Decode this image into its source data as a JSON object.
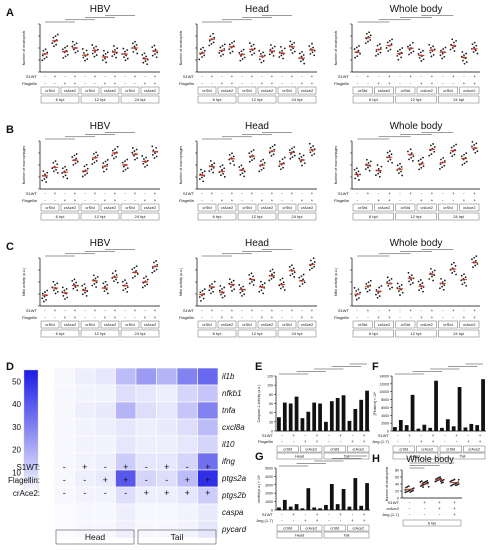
{
  "panels": {
    "A": "A",
    "B": "B",
    "C": "C",
    "D": "D",
    "E": "E",
    "F": "F",
    "G": "G",
    "H": "H"
  },
  "column_titles": [
    "HBV",
    "Head",
    "Whole body"
  ],
  "row_ylabels": {
    "A": "Number of neutrophils",
    "B": "Number of macrophages",
    "C": "Nfkb activity (a.u.)"
  },
  "abc_rows": {
    "row1_label": "S1WT",
    "A_row2_label": "Flagellin",
    "B_row2_label": "Flagellin",
    "C_row2_label": "Flagellin",
    "group_labels": [
      "crStd",
      "crAce2"
    ],
    "time_labels": [
      "6 hpi",
      "12 hpi",
      "24 hpi"
    ],
    "signs": [
      "-",
      "+",
      "-",
      "+"
    ]
  },
  "colors": {
    "dots": "#1a1a1a",
    "highlight": "#c0392b",
    "heat_low": "#ffffff",
    "heat_high": "#1a1ae6",
    "bar": "#111111"
  },
  "chart_data": [
    {
      "panel": "D",
      "type": "heatmap",
      "rows": [
        "il1b",
        "nfkb1",
        "tnfa",
        "cxcl8a",
        "il10",
        "ifng",
        "ptgs2a",
        "ptgs2b",
        "caspa",
        "pycard"
      ],
      "colorbar": {
        "ticks": [
          10,
          20,
          30,
          40,
          50
        ],
        "range": [
          0,
          55
        ]
      },
      "col_annotations": {
        "S1WT": [
          "-",
          "+",
          "-",
          "+",
          "-",
          "+",
          "-",
          "+"
        ],
        "Flagellin": [
          "-",
          "-",
          "+",
          "+",
          "-",
          "-",
          "+",
          "+"
        ],
        "crAce2": [
          "-",
          "-",
          "-",
          "-",
          "+",
          "+",
          "+",
          "+"
        ]
      },
      "groups": [
        "Head",
        "Tail"
      ],
      "values": [
        [
          2,
          4,
          6,
          16,
          24,
          18,
          30,
          36
        ],
        [
          2,
          3,
          3,
          8,
          6,
          4,
          10,
          14
        ],
        [
          2,
          4,
          5,
          18,
          8,
          6,
          14,
          30
        ],
        [
          2,
          3,
          4,
          6,
          4,
          5,
          8,
          16
        ],
        [
          2,
          3,
          3,
          6,
          4,
          4,
          6,
          10
        ],
        [
          2,
          3,
          4,
          12,
          6,
          6,
          10,
          34
        ],
        [
          2,
          4,
          5,
          40,
          10,
          8,
          16,
          50
        ],
        [
          2,
          3,
          3,
          8,
          4,
          4,
          6,
          12
        ],
        [
          1,
          2,
          2,
          4,
          2,
          2,
          3,
          5
        ],
        [
          1,
          2,
          2,
          4,
          2,
          2,
          3,
          6
        ]
      ]
    },
    {
      "panel": "E",
      "type": "bar",
      "ylabel": "Caspase-1 activity (a.u.)",
      "ylim": [
        0,
        120
      ],
      "yticks": [
        0,
        20,
        40,
        60,
        80,
        100,
        120
      ],
      "rowlabels": [
        "S1WT",
        "Flagellin"
      ],
      "row_signs": [
        [
          "-",
          "+",
          "-",
          "+",
          "-",
          "+",
          "-",
          "+"
        ],
        [
          "-",
          "-",
          "+",
          "+",
          "-",
          "-",
          "+",
          "+"
        ]
      ],
      "subgroups": [
        "crStd",
        "crAce2",
        "crStd",
        "crAce2"
      ],
      "groups": [
        "Head",
        "Tail"
      ],
      "values": [
        30,
        62,
        60,
        75,
        28,
        42,
        62,
        60,
        20,
        65,
        72,
        78,
        22,
        48,
        68,
        88
      ]
    },
    {
      "panel": "F",
      "type": "bar",
      "ylabel": "[Ptinlmin] × 10⁶",
      "ylim": [
        0,
        14000
      ],
      "yticks": [
        0,
        2000,
        4000,
        6000,
        8000,
        10000,
        12000,
        14000
      ],
      "rowlabels": [
        "S1WT",
        "Ang (1-7)"
      ],
      "row_signs": [
        [
          "-",
          "+",
          "-",
          "+",
          "-",
          "+",
          "-",
          "+"
        ],
        [
          "-",
          "-",
          "+",
          "+",
          "-",
          "-",
          "+",
          "+"
        ]
      ],
      "subgroups": [
        "crStd",
        "crAce2",
        "crStd",
        "crAce2"
      ],
      "groups": [
        "Head",
        "Tail"
      ],
      "values": [
        1000,
        2800,
        1500,
        9200,
        600,
        1600,
        800,
        12800,
        800,
        3000,
        1200,
        11200,
        900,
        1800,
        1500,
        13200
      ]
    },
    {
      "panel": "G",
      "type": "bar",
      "ylabel": "cs/nfkb(a.u.) × 10⁶",
      "ylim": [
        0,
        5000
      ],
      "yticks": [
        0,
        1000,
        2000,
        3000,
        4000,
        5000
      ],
      "rowlabels": [
        "S1WT",
        "Ang (1-7)"
      ],
      "row_signs": [
        [
          "-",
          "+",
          "-",
          "+",
          "-",
          "+",
          "-",
          "+"
        ],
        [
          "-",
          "-",
          "+",
          "+",
          "-",
          "-",
          "+",
          "+"
        ]
      ],
      "subgroups": [
        "crStd",
        "crAce2",
        "crStd",
        "crAce2"
      ],
      "groups": [
        "Head",
        "Tail"
      ],
      "values": [
        300,
        1200,
        400,
        700,
        200,
        2600,
        300,
        200,
        600,
        3100,
        700,
        2500,
        400,
        3800,
        500,
        3200
      ]
    },
    {
      "panel": "H",
      "type": "scatter",
      "title": "Whole body",
      "ylabel": "Number of neutrophils",
      "ylim": [
        0,
        80
      ],
      "yticks": [
        0,
        20,
        40,
        60,
        80
      ],
      "rowlabels": [
        "S1WT",
        "crAce2",
        "Ang (1-7)"
      ],
      "row_signs": [
        [
          "-",
          "+",
          "+",
          "+"
        ],
        [
          "-",
          "-",
          "+",
          "+"
        ],
        [
          "-",
          "-",
          "-",
          "+"
        ]
      ],
      "time_label": "6 hpi",
      "means": [
        25,
        40,
        52,
        44
      ]
    }
  ]
}
